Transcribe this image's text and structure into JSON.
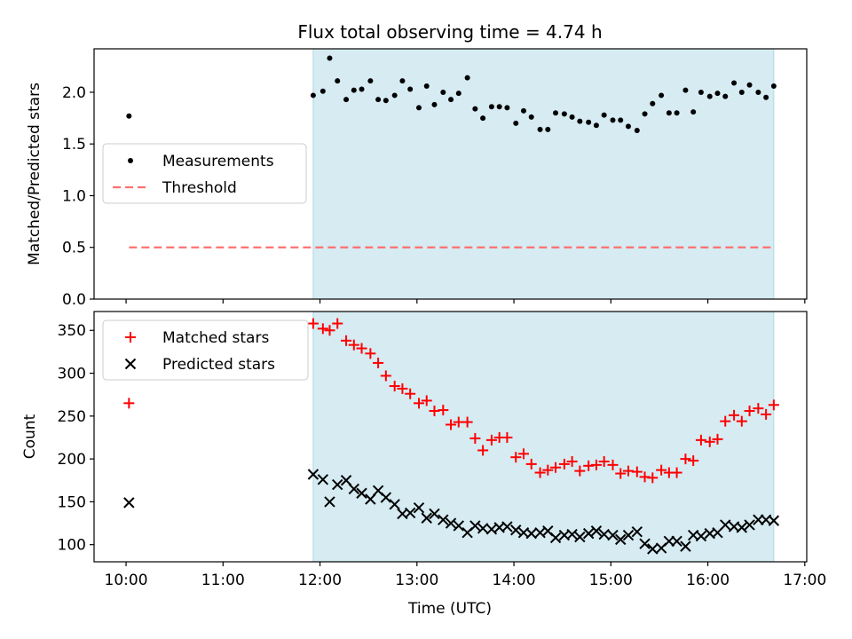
{
  "title": "Flux total observing time = 4.74 h",
  "xlabel": "Time (UTC)",
  "xticks": [
    "10:00",
    "11:00",
    "12:00",
    "13:00",
    "14:00",
    "15:00",
    "16:00",
    "17:00"
  ],
  "colors": {
    "band": "#add8e6",
    "threshold": "#ff7070",
    "matched": "#ff0000",
    "predicted": "#000000",
    "measure": "#000000"
  },
  "chart_data": [
    {
      "type": "scatter",
      "ylabel": "Matched/Predicted stars",
      "ylim": [
        0,
        2.42
      ],
      "xlim": [
        9.67,
        17.02
      ],
      "yticks": [
        0.0,
        0.5,
        1.0,
        1.5,
        2.0
      ],
      "ytick_labels": [
        "0.0",
        "0.5",
        "1.0",
        "1.5",
        "2.0"
      ],
      "band": [
        11.93,
        16.68
      ],
      "threshold": {
        "name": "Threshold",
        "y": 0.5,
        "x": [
          10.03,
          16.68
        ]
      },
      "legend": "center-left",
      "series": [
        {
          "name": "Measurements",
          "x": [
            10.03,
            11.93,
            12.03,
            12.1,
            12.18,
            12.27,
            12.35,
            12.43,
            12.52,
            12.6,
            12.68,
            12.77,
            12.85,
            12.93,
            13.02,
            13.1,
            13.18,
            13.27,
            13.35,
            13.43,
            13.52,
            13.6,
            13.68,
            13.77,
            13.85,
            13.93,
            14.02,
            14.1,
            14.18,
            14.27,
            14.35,
            14.43,
            14.52,
            14.6,
            14.68,
            14.77,
            14.85,
            14.93,
            15.02,
            15.1,
            15.18,
            15.27,
            15.35,
            15.43,
            15.52,
            15.6,
            15.68,
            15.77,
            15.85,
            15.93,
            16.02,
            16.1,
            16.18,
            16.27,
            16.35,
            16.43,
            16.52,
            16.6,
            16.68
          ],
          "y": [
            1.77,
            1.97,
            2.01,
            2.33,
            2.11,
            1.93,
            2.02,
            2.03,
            2.11,
            1.93,
            1.92,
            1.97,
            2.11,
            2.03,
            1.85,
            2.06,
            1.88,
            2.0,
            1.93,
            1.99,
            2.14,
            1.84,
            1.75,
            1.86,
            1.86,
            1.85,
            1.7,
            1.82,
            1.76,
            1.64,
            1.64,
            1.8,
            1.79,
            1.76,
            1.72,
            1.71,
            1.68,
            1.78,
            1.73,
            1.73,
            1.67,
            1.63,
            1.79,
            1.89,
            1.97,
            1.8,
            1.8,
            2.02,
            1.81,
            2.0,
            1.96,
            1.99,
            1.96,
            2.09,
            2.0,
            2.07,
            2.0,
            1.95,
            2.06
          ]
        }
      ]
    },
    {
      "type": "scatter",
      "ylabel": "Count",
      "ylim": [
        80,
        372
      ],
      "xlim": [
        9.67,
        17.02
      ],
      "yticks": [
        100,
        150,
        200,
        250,
        300,
        350
      ],
      "ytick_labels": [
        "100",
        "150",
        "200",
        "250",
        "300",
        "350"
      ],
      "band": [
        11.93,
        16.68
      ],
      "legend": "upper-left",
      "series": [
        {
          "name": "Matched stars",
          "marker": "plus",
          "x": [
            10.03,
            11.93,
            12.03,
            12.1,
            12.18,
            12.27,
            12.35,
            12.43,
            12.52,
            12.6,
            12.68,
            12.77,
            12.85,
            12.93,
            13.02,
            13.1,
            13.18,
            13.27,
            13.35,
            13.43,
            13.52,
            13.6,
            13.68,
            13.77,
            13.85,
            13.93,
            14.02,
            14.1,
            14.18,
            14.27,
            14.35,
            14.43,
            14.52,
            14.6,
            14.68,
            14.77,
            14.85,
            14.93,
            15.02,
            15.1,
            15.18,
            15.27,
            15.35,
            15.43,
            15.52,
            15.6,
            15.68,
            15.77,
            15.85,
            15.93,
            16.02,
            16.1,
            16.18,
            16.27,
            16.35,
            16.43,
            16.52,
            16.6,
            16.68
          ],
          "y": [
            265,
            358,
            352,
            350,
            358,
            338,
            333,
            329,
            323,
            312,
            297,
            285,
            282,
            276,
            265,
            268,
            256,
            257,
            240,
            243,
            243,
            224,
            210,
            222,
            225,
            225,
            202,
            206,
            194,
            184,
            187,
            190,
            194,
            197,
            186,
            192,
            193,
            197,
            193,
            183,
            186,
            185,
            179,
            178,
            187,
            184,
            184,
            200,
            198,
            222,
            220,
            223,
            244,
            251,
            244,
            256,
            259,
            252,
            263
          ]
        },
        {
          "name": "Predicted stars",
          "marker": "x",
          "x": [
            10.03,
            11.93,
            12.03,
            12.1,
            12.18,
            12.27,
            12.35,
            12.43,
            12.52,
            12.6,
            12.68,
            12.77,
            12.85,
            12.93,
            13.02,
            13.1,
            13.18,
            13.27,
            13.35,
            13.43,
            13.52,
            13.6,
            13.68,
            13.77,
            13.85,
            13.93,
            14.02,
            14.1,
            14.18,
            14.27,
            14.35,
            14.43,
            14.52,
            14.6,
            14.68,
            14.77,
            14.85,
            14.93,
            15.02,
            15.1,
            15.18,
            15.27,
            15.35,
            15.43,
            15.52,
            15.6,
            15.68,
            15.77,
            15.85,
            15.93,
            16.02,
            16.1,
            16.18,
            16.27,
            16.35,
            16.43,
            16.52,
            16.6,
            16.68
          ],
          "y": [
            149,
            182,
            176,
            150,
            170,
            175,
            165,
            160,
            153,
            163,
            155,
            147,
            136,
            137,
            143,
            131,
            136,
            129,
            125,
            122,
            114,
            122,
            119,
            118,
            120,
            121,
            117,
            114,
            113,
            114,
            116,
            108,
            111,
            112,
            109,
            113,
            116,
            112,
            111,
            106,
            111,
            115,
            101,
            95,
            96,
            104,
            104,
            98,
            111,
            110,
            113,
            114,
            123,
            121,
            120,
            123,
            129,
            129,
            128
          ]
        }
      ]
    }
  ]
}
